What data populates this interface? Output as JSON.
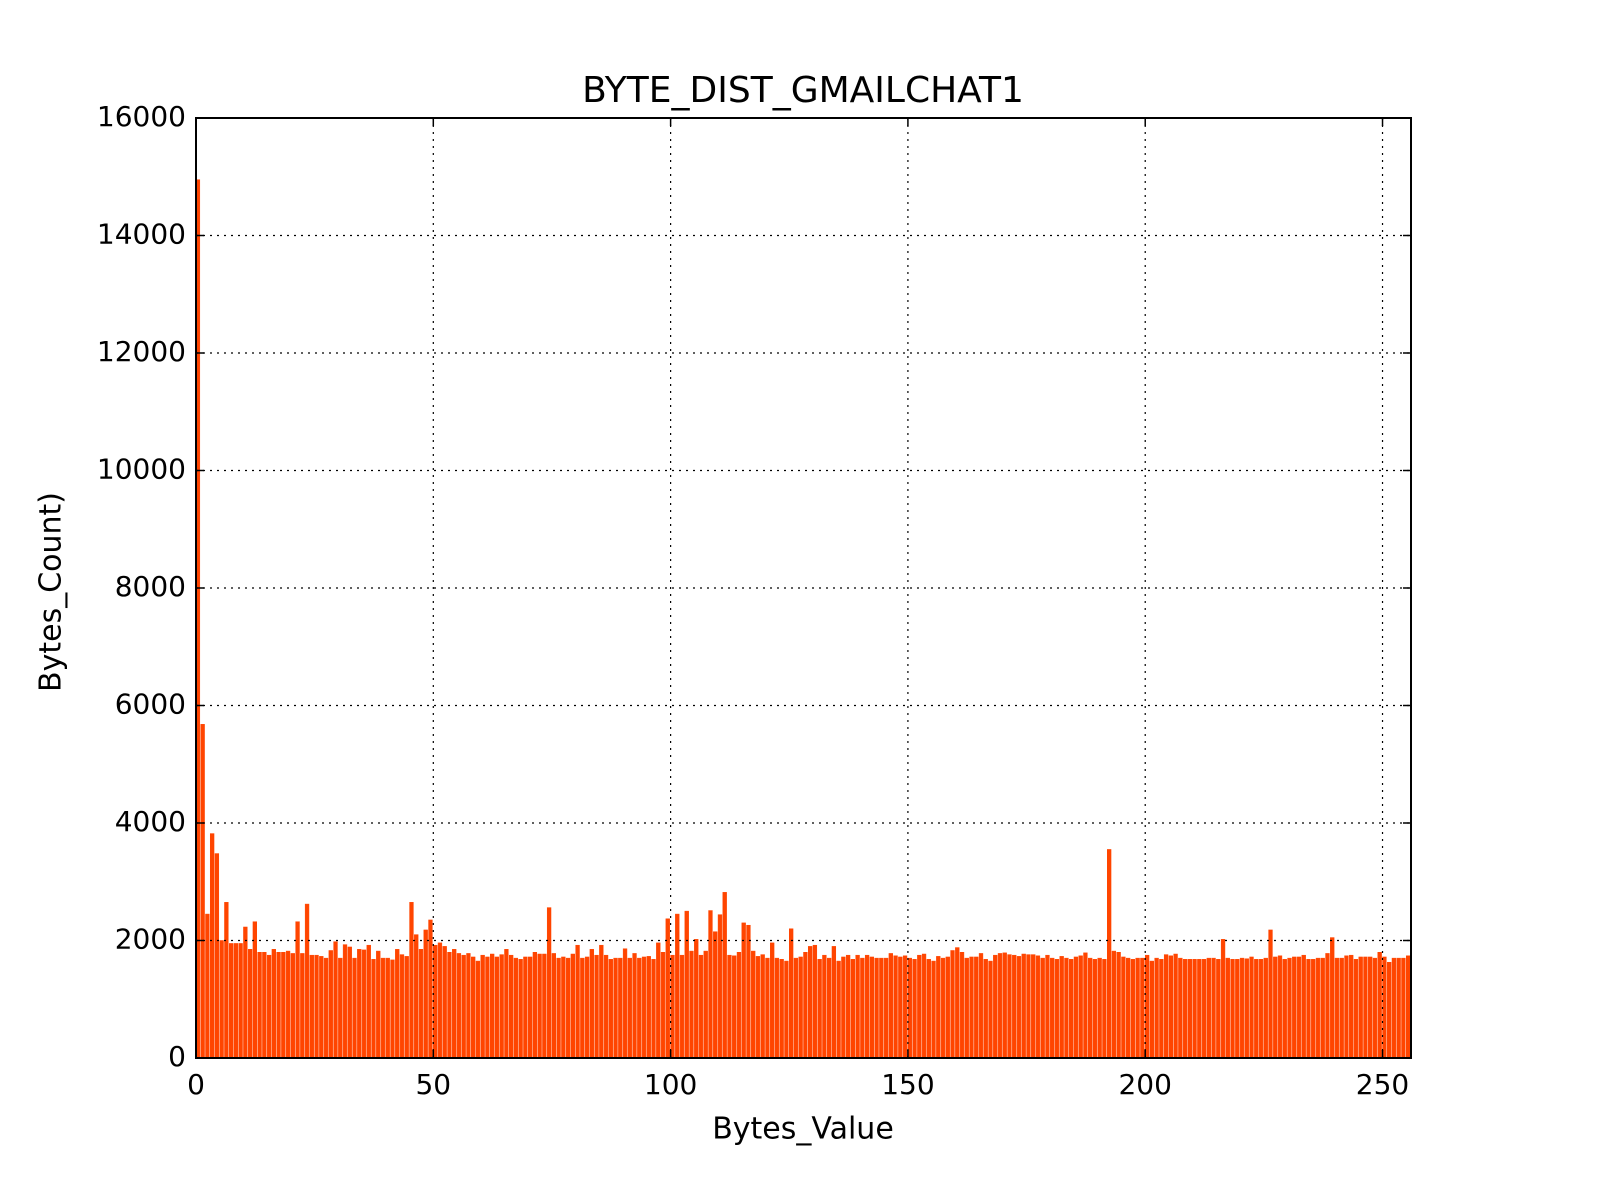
{
  "chart_data": {
    "type": "bar",
    "title": "BYTE_DIST_GMAILCHAT1",
    "xlabel": "Bytes_Value",
    "ylabel": "Bytes_Count)",
    "color": "#ff4500",
    "grid": true,
    "x": [
      0,
      1,
      2,
      3,
      4,
      5,
      6,
      7,
      8,
      9,
      10,
      11,
      12,
      13,
      14,
      15,
      16,
      17,
      18,
      19,
      20,
      21,
      22,
      23,
      24,
      25,
      26,
      27,
      28,
      29,
      30,
      31,
      32,
      33,
      34,
      35,
      36,
      37,
      38,
      39,
      40,
      41,
      42,
      43,
      44,
      45,
      46,
      47,
      48,
      49,
      50,
      51,
      52,
      53,
      54,
      55,
      56,
      57,
      58,
      59,
      60,
      61,
      62,
      63,
      64,
      65,
      66,
      67,
      68,
      69,
      70,
      71,
      72,
      73,
      74,
      75,
      76,
      77,
      78,
      79,
      80,
      81,
      82,
      83,
      84,
      85,
      86,
      87,
      88,
      89,
      90,
      91,
      92,
      93,
      94,
      95,
      96,
      97,
      98,
      99,
      100,
      101,
      102,
      103,
      104,
      105,
      106,
      107,
      108,
      109,
      110,
      111,
      112,
      113,
      114,
      115,
      116,
      117,
      118,
      119,
      120,
      121,
      122,
      123,
      124,
      125,
      126,
      127,
      128,
      129,
      130,
      131,
      132,
      133,
      134,
      135,
      136,
      137,
      138,
      139,
      140,
      141,
      142,
      143,
      144,
      145,
      146,
      147,
      148,
      149,
      150,
      151,
      152,
      153,
      154,
      155,
      156,
      157,
      158,
      159,
      160,
      161,
      162,
      163,
      164,
      165,
      166,
      167,
      168,
      169,
      170,
      171,
      172,
      173,
      174,
      175,
      176,
      177,
      178,
      179,
      180,
      181,
      182,
      183,
      184,
      185,
      186,
      187,
      188,
      189,
      190,
      191,
      192,
      193,
      194,
      195,
      196,
      197,
      198,
      199,
      200,
      201,
      202,
      203,
      204,
      205,
      206,
      207,
      208,
      209,
      210,
      211,
      212,
      213,
      214,
      215,
      216,
      217,
      218,
      219,
      220,
      221,
      222,
      223,
      224,
      225,
      226,
      227,
      228,
      229,
      230,
      231,
      232,
      233,
      234,
      235,
      236,
      237,
      238,
      239,
      240,
      241,
      242,
      243,
      244,
      245,
      246,
      247,
      248,
      249,
      250,
      251,
      252,
      253,
      254,
      255
    ],
    "values": [
      14950,
      5680,
      2450,
      3820,
      3480,
      2000,
      2650,
      1950,
      1950,
      1950,
      2230,
      1850,
      2320,
      1800,
      1800,
      1750,
      1850,
      1800,
      1800,
      1820,
      1780,
      2320,
      1780,
      2620,
      1750,
      1750,
      1730,
      1700,
      1830,
      1980,
      1700,
      1930,
      1890,
      1700,
      1850,
      1840,
      1920,
      1680,
      1820,
      1700,
      1700,
      1670,
      1850,
      1760,
      1730,
      2650,
      2100,
      1850,
      2180,
      2350,
      1920,
      1960,
      1900,
      1800,
      1850,
      1780,
      1750,
      1780,
      1720,
      1650,
      1750,
      1720,
      1770,
      1720,
      1760,
      1850,
      1750,
      1700,
      1680,
      1720,
      1720,
      1800,
      1770,
      1770,
      2560,
      1780,
      1700,
      1720,
      1700,
      1770,
      1920,
      1700,
      1720,
      1850,
      1750,
      1920,
      1750,
      1680,
      1700,
      1700,
      1860,
      1700,
      1780,
      1700,
      1720,
      1730,
      1680,
      1960,
      1800,
      2370,
      1750,
      2450,
      1750,
      2500,
      1820,
      2020,
      1750,
      1820,
      2510,
      2150,
      2440,
      2820,
      1750,
      1740,
      1800,
      2300,
      2260,
      1820,
      1730,
      1760,
      1700,
      1960,
      1700,
      1680,
      1650,
      2200,
      1700,
      1720,
      1800,
      1900,
      1920,
      1680,
      1750,
      1700,
      1900,
      1650,
      1720,
      1750,
      1680,
      1750,
      1700,
      1750,
      1720,
      1700,
      1700,
      1700,
      1780,
      1740,
      1720,
      1740,
      1700,
      1680,
      1750,
      1770,
      1680,
      1650,
      1730,
      1700,
      1720,
      1830,
      1880,
      1800,
      1700,
      1720,
      1720,
      1780,
      1680,
      1650,
      1750,
      1780,
      1790,
      1760,
      1750,
      1730,
      1770,
      1760,
      1760,
      1740,
      1700,
      1750,
      1700,
      1680,
      1730,
      1700,
      1680,
      1720,
      1740,
      1790,
      1700,
      1680,
      1700,
      1680,
      3550,
      1820,
      1800,
      1720,
      1700,
      1680,
      1700,
      1700,
      1750,
      1650,
      1700,
      1680,
      1760,
      1740,
      1770,
      1700,
      1680,
      1680,
      1680,
      1680,
      1680,
      1700,
      1700,
      1680,
      2020,
      1700,
      1680,
      1680,
      1700,
      1690,
      1720,
      1680,
      1680,
      1700,
      2180,
      1720,
      1740,
      1680,
      1700,
      1720,
      1720,
      1750,
      1680,
      1680,
      1700,
      1700,
      1780,
      2050,
      1700,
      1700,
      1740,
      1750,
      1680,
      1720,
      1720,
      1720,
      1700,
      1800,
      1720,
      1630,
      1700,
      1700,
      1700,
      1740
    ],
    "xlim": [
      0,
      256
    ],
    "xticks": [
      0,
      50,
      100,
      150,
      200,
      250
    ],
    "ylim": [
      0,
      16000
    ],
    "yticks": [
      0,
      2000,
      4000,
      6000,
      8000,
      10000,
      12000,
      14000,
      16000
    ]
  }
}
